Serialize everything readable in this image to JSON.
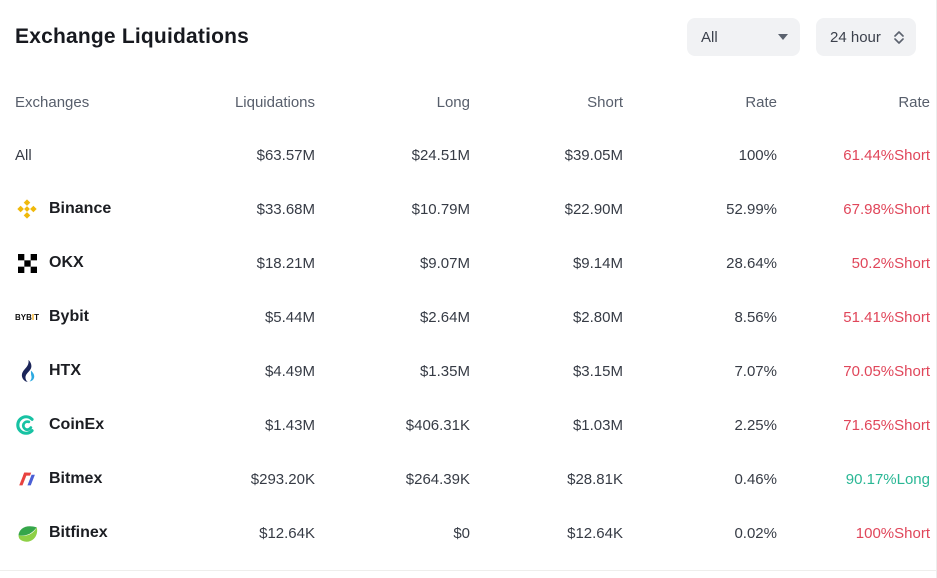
{
  "header": {
    "title": "Exchange Liquidations",
    "filter_dropdown": {
      "value": "All"
    },
    "time_dropdown": {
      "value": "24 hour"
    }
  },
  "colors": {
    "short_rate": "#e0465a",
    "long_rate": "#2ab795",
    "binance_gold": "#f0b90b",
    "coinex_teal": "#17c2a3",
    "htx_navy": "#1b2559",
    "htx_blue": "#2daae1",
    "bitmex_red": "#e8423f",
    "bitmex_blue": "#4a5fd5",
    "bitfinex_dark_green": "#35a64a",
    "bitfinex_light_green": "#8ed046",
    "bybit_yellow": "#f7a600"
  },
  "table": {
    "columns": [
      "Exchanges",
      "Liquidations",
      "Long",
      "Short",
      "Rate",
      "Rate"
    ],
    "rows": [
      {
        "exchange": "All",
        "icon": "",
        "liquidations": "$63.57M",
        "long": "$24.51M",
        "short": "$39.05M",
        "rate": "100%",
        "dominance": "61.44%Short",
        "side": "short"
      },
      {
        "exchange": "Binance",
        "icon": "binance-icon",
        "liquidations": "$33.68M",
        "long": "$10.79M",
        "short": "$22.90M",
        "rate": "52.99%",
        "dominance": "67.98%Short",
        "side": "short"
      },
      {
        "exchange": "OKX",
        "icon": "okx-icon",
        "liquidations": "$18.21M",
        "long": "$9.07M",
        "short": "$9.14M",
        "rate": "28.64%",
        "dominance": "50.2%Short",
        "side": "short"
      },
      {
        "exchange": "Bybit",
        "icon": "bybit-icon",
        "liquidations": "$5.44M",
        "long": "$2.64M",
        "short": "$2.80M",
        "rate": "8.56%",
        "dominance": "51.41%Short",
        "side": "short"
      },
      {
        "exchange": "HTX",
        "icon": "htx-icon",
        "liquidations": "$4.49M",
        "long": "$1.35M",
        "short": "$3.15M",
        "rate": "7.07%",
        "dominance": "70.05%Short",
        "side": "short"
      },
      {
        "exchange": "CoinEx",
        "icon": "coinex-icon",
        "liquidations": "$1.43M",
        "long": "$406.31K",
        "short": "$1.03M",
        "rate": "2.25%",
        "dominance": "71.65%Short",
        "side": "short"
      },
      {
        "exchange": "Bitmex",
        "icon": "bitmex-icon",
        "liquidations": "$293.20K",
        "long": "$264.39K",
        "short": "$28.81K",
        "rate": "0.46%",
        "dominance": "90.17%Long",
        "side": "long"
      },
      {
        "exchange": "Bitfinex",
        "icon": "bitfinex-icon",
        "liquidations": "$12.64K",
        "long": "$0",
        "short": "$12.64K",
        "rate": "0.02%",
        "dominance": "100%Short",
        "side": "short"
      }
    ]
  }
}
